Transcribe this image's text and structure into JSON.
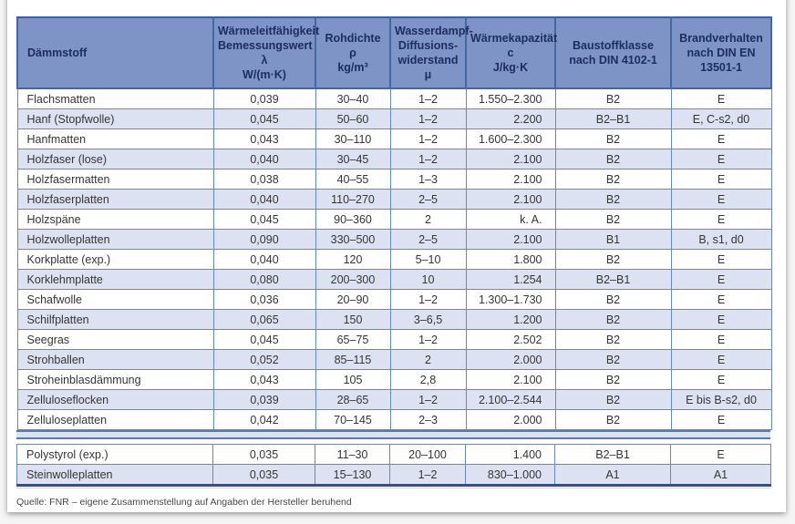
{
  "page": {
    "footer_note": "Quelle: FNR – eigene Zusammenstellung auf Angaben der Hersteller beruhend"
  },
  "colors": {
    "header_bg": "#7e93c6",
    "header_text": "#1c2d5e",
    "row_alt_bg": "#dde2f2",
    "grid_line": "#6688c5",
    "outer_dark_border": "#2e4f9f"
  },
  "table": {
    "columns": [
      {
        "key": "material",
        "label_lines": [
          "Dämmstoff"
        ]
      },
      {
        "key": "lambda",
        "label_lines": [
          "Wärmeleitfähigkeit",
          "Bemessungswert λ",
          "W/(m·K)"
        ]
      },
      {
        "key": "density",
        "label_lines": [
          "Rohdichte",
          "ρ",
          "kg/m³"
        ]
      },
      {
        "key": "mu",
        "label_lines": [
          "Wasserdampf-",
          "Diffusions-",
          "widerstand",
          "μ"
        ]
      },
      {
        "key": "capacity",
        "label_lines": [
          "Wärmekapazität",
          "c",
          "J/kg·K"
        ]
      },
      {
        "key": "class",
        "label_lines": [
          "Baustoffklasse",
          "nach DIN 4102-1"
        ]
      },
      {
        "key": "fire",
        "label_lines": [
          "Brandverhalten",
          "nach DIN EN",
          "13501-1"
        ]
      }
    ],
    "rows": [
      [
        "Flachsmatten",
        "0,039",
        "30–40",
        "1–2",
        "1.550–2.300",
        "B2",
        "E"
      ],
      [
        "Hanf (Stopfwolle)",
        "0,045",
        "50–60",
        "1–2",
        "2.200",
        "B2–B1",
        "E, C-s2, d0"
      ],
      [
        "Hanfmatten",
        "0,043",
        "30–110",
        "1–2",
        "1.600–2.300",
        "B2",
        "E"
      ],
      [
        "Holzfaser (lose)",
        "0,040",
        "30–45",
        "1–2",
        "2.100",
        "B2",
        "E"
      ],
      [
        "Holzfasermatten",
        "0,038",
        "40–55",
        "1–3",
        "2.100",
        "B2",
        "E"
      ],
      [
        "Holzfaserplatten",
        "0,040",
        "110–270",
        "2–5",
        "2.100",
        "B2",
        "E"
      ],
      [
        "Holzspäne",
        "0,045",
        "90–360",
        "2",
        "k. A.",
        "B2",
        "E"
      ],
      [
        "Holzwolleplatten",
        "0,090",
        "330–500",
        "2–5",
        "2.100",
        "B1",
        "B, s1, d0"
      ],
      [
        "Korkplatte (exp.)",
        "0,040",
        "120",
        "5–10",
        "1.800",
        "B2",
        "E"
      ],
      [
        "Korklehmplatte",
        "0,080",
        "200–300",
        "10",
        "1.254",
        "B2–B1",
        "E"
      ],
      [
        "Schafwolle",
        "0,036",
        "20–90",
        "1–2",
        "1.300–1.730",
        "B2",
        "E"
      ],
      [
        "Schilfplatten",
        "0,065",
        "150",
        "3–6,5",
        "1.200",
        "B2",
        "E"
      ],
      [
        "Seegras",
        "0,045",
        "65–75",
        "1–2",
        "2.502",
        "B2",
        "E"
      ],
      [
        "Strohballen",
        "0,052",
        "85–115",
        "2",
        "2.000",
        "B2",
        "E"
      ],
      [
        "Stroheinblasdämmung",
        "0,043",
        "105",
        "2,8",
        "2.100",
        "B2",
        "E"
      ],
      [
        "Zelluloseflocken",
        "0,039",
        "28–65",
        "1–2",
        "2.100–2.544",
        "B2",
        "E bis B-s2, d0"
      ],
      [
        "Zelluloseplatten",
        "0,042",
        "70–145",
        "2–3",
        "2.000",
        "B2",
        "E"
      ]
    ],
    "bottom_rows": [
      [
        "Polystyrol (exp.)",
        "0,035",
        "11–30",
        "20–100",
        "1.400",
        "B2–B1",
        "E"
      ],
      [
        "Steinwolleplatten",
        "0,035",
        "15–130",
        "1–2",
        "830–1.000",
        "A1",
        "A1"
      ]
    ]
  }
}
